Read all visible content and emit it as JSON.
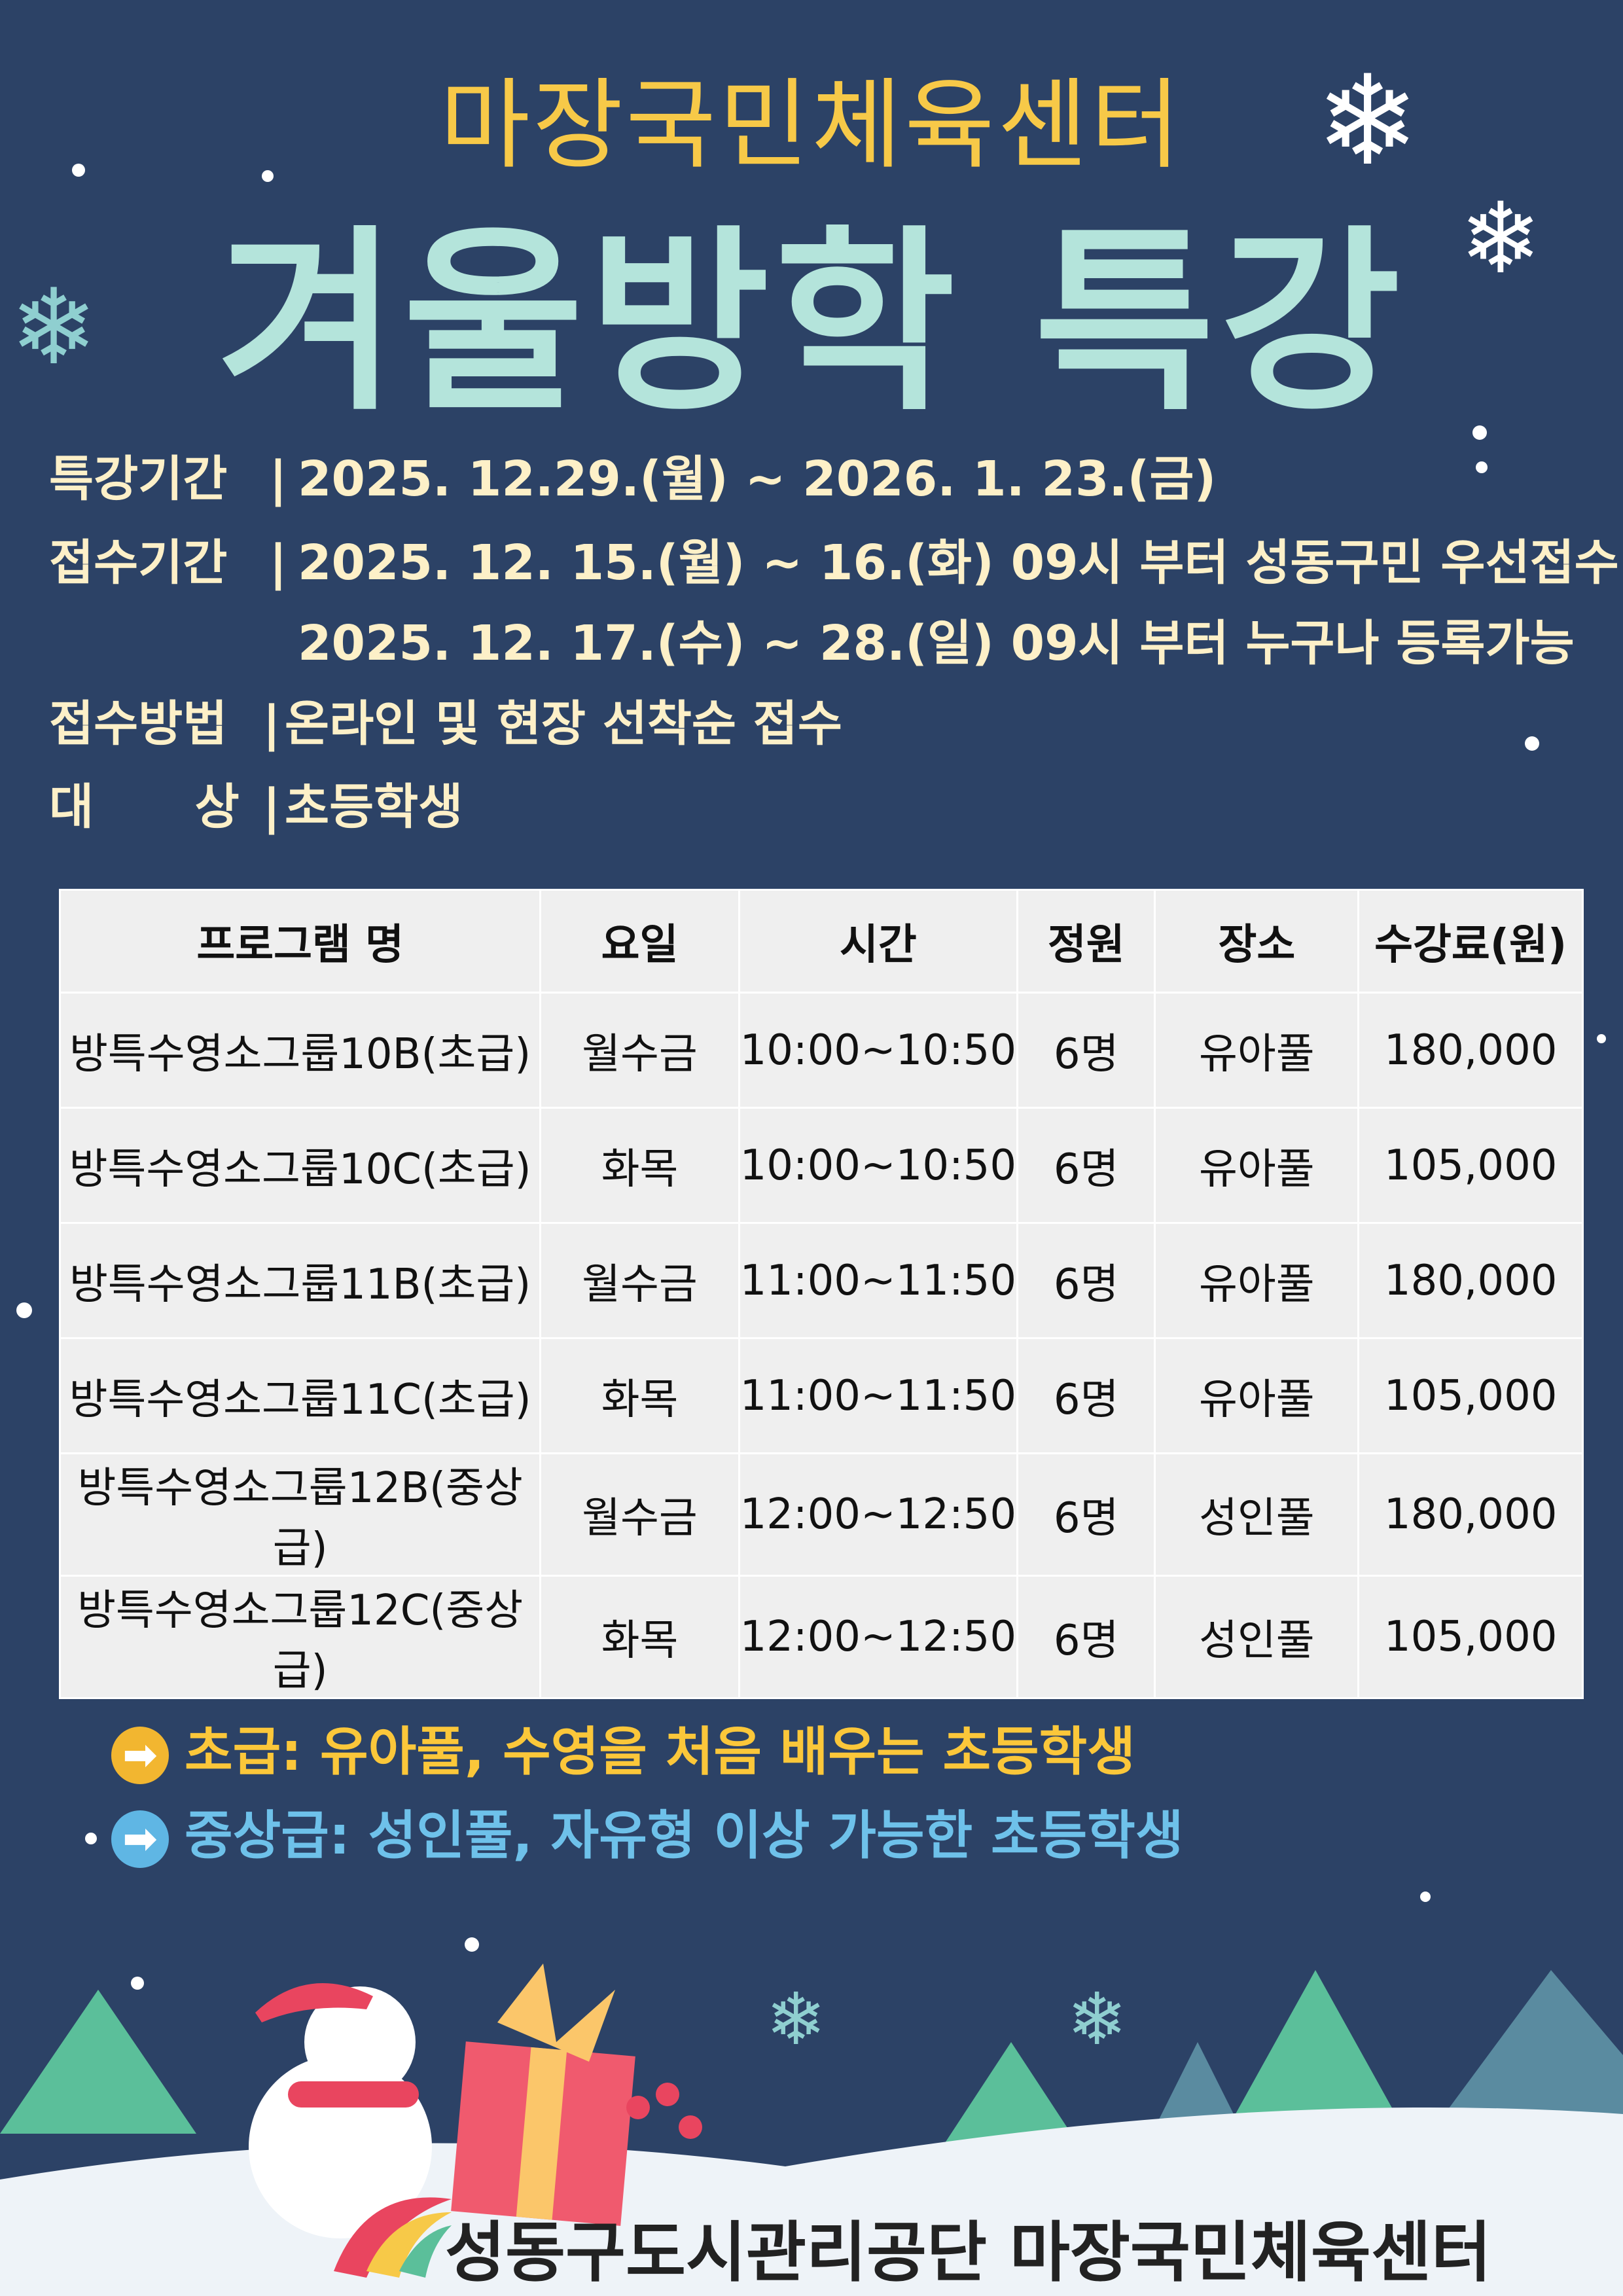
{
  "header": {
    "subtitle": "마장국민체육센터",
    "title": "겨울방학 특강"
  },
  "info": [
    {
      "label": "특강기간",
      "sep": "|",
      "value": "2025. 12.29.(월)  ~  2026. 1. 23.(금)"
    },
    {
      "label": "접수기간",
      "sep": "|",
      "value": "2025. 12. 15.(월)  ~ 16.(화) 09시 부터 성동구민 우선접수"
    },
    {
      "label": "",
      "sep": "",
      "value": "2025. 12. 17.(수)  ~ 28.(일) 09시 부터 누구나 등록가능"
    },
    {
      "label": "접수방법",
      "sep": "|",
      "value": "온라인 및 현장 선착순 접수"
    },
    {
      "label": "대      상",
      "sep": "|",
      "value": "초등학생"
    }
  ],
  "table": {
    "headers": [
      "프로그램 명",
      "요일",
      "시간",
      "정원",
      "장소",
      "수강료(원)"
    ],
    "rows": [
      [
        "방특수영소그룹10B(초급)",
        "월수금",
        "10:00~10:50",
        "6명",
        "유아풀",
        "180,000"
      ],
      [
        "방특수영소그룹10C(초급)",
        "화목",
        "10:00~10:50",
        "6명",
        "유아풀",
        "105,000"
      ],
      [
        "방특수영소그룹11B(초급)",
        "월수금",
        "11:00~11:50",
        "6명",
        "유아풀",
        "180,000"
      ],
      [
        "방특수영소그룹11C(초급)",
        "화목",
        "11:00~11:50",
        "6명",
        "유아풀",
        "105,000"
      ],
      [
        "방특수영소그룹12B(중상급)",
        "월수금",
        "12:00~12:50",
        "6명",
        "성인풀",
        "180,000"
      ],
      [
        "방특수영소그룹12C(중상급)",
        "화목",
        "12:00~12:50",
        "6명",
        "성인풀",
        "105,000"
      ]
    ]
  },
  "notes": [
    {
      "text": "초급: 유아풀, 수영을 처음 배우는 초등학생",
      "color": "#fbc73a",
      "icon": "arrow-right-icon",
      "arrow": "➡"
    },
    {
      "text": "중상급: 성인풀, 자유형 이상 가능한 초등학생",
      "color": "#6ec1ea",
      "icon": "arrow-right-icon",
      "arrow": "➡"
    }
  ],
  "footer": {
    "org": "성동구도시관리공단  마장국민체육센터"
  },
  "colors": {
    "background": "#2c4266",
    "subtitle": "#f7c948",
    "title": "#b4e4db",
    "info": "#fdf0c8"
  }
}
